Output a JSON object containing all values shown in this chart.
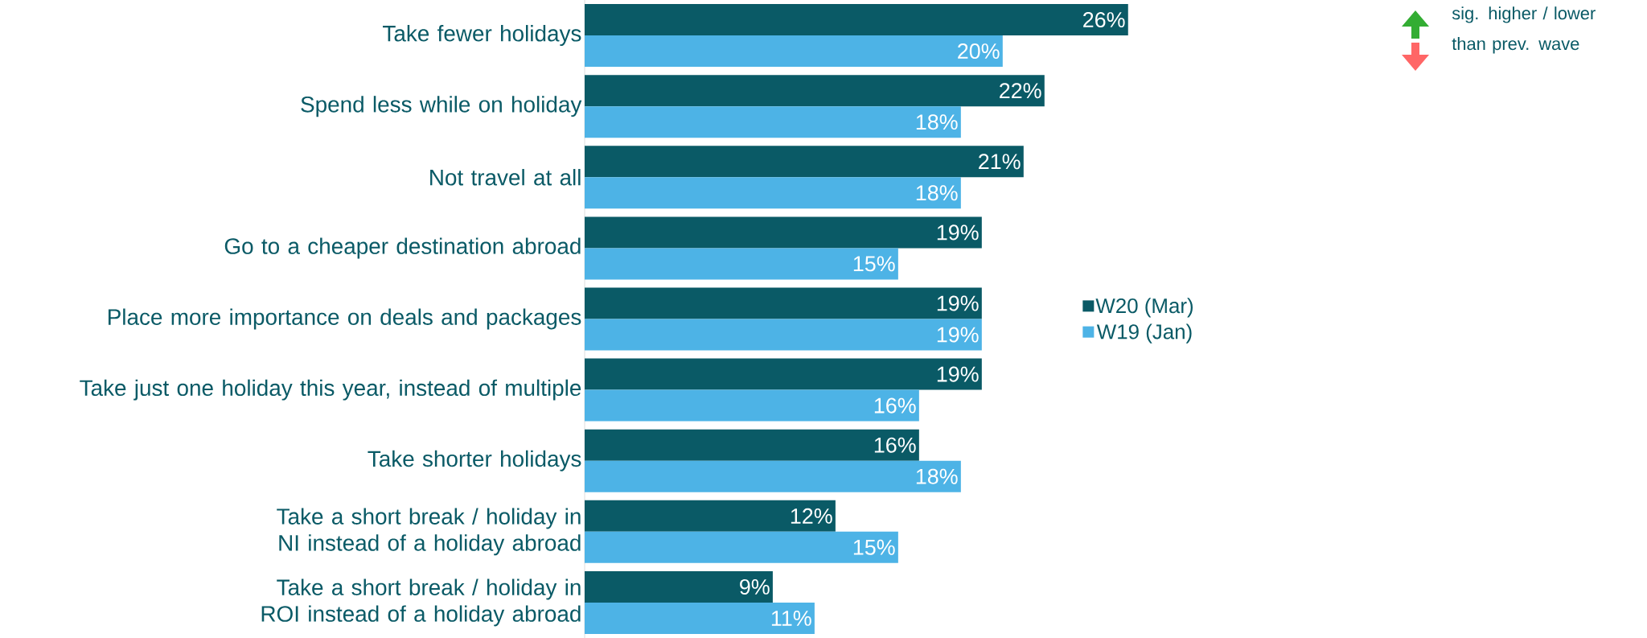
{
  "chart_data": {
    "type": "bar",
    "orientation": "horizontal",
    "categories": [
      "Take fewer holidays",
      "Spend less while on holiday",
      "Not travel at all",
      "Go to a cheaper destination abroad",
      "Place more importance on deals and packages",
      "Take just one holiday this year, instead of multiple",
      "Take shorter holidays",
      "Take a short break / holiday in NI instead of a holiday abroad",
      "Take a short break / holiday in ROI instead of a holiday abroad"
    ],
    "series": [
      {
        "name": "W20 (Mar)",
        "color": "#0a5a66",
        "values": [
          26,
          22,
          21,
          19,
          19,
          19,
          16,
          12,
          9
        ],
        "value_labels": [
          "26%",
          "22%",
          "21%",
          "19%",
          "19%",
          "19%",
          "16%",
          "12%",
          "9%"
        ]
      },
      {
        "name": "W19 (Jan)",
        "color": "#4db3e6",
        "values": [
          20,
          18,
          18,
          15,
          19,
          16,
          18,
          15,
          11
        ],
        "value_labels": [
          "20%",
          "18%",
          "18%",
          "15%",
          "19%",
          "16%",
          "18%",
          "15%",
          "11%"
        ]
      }
    ],
    "tick_labels": "y",
    "legend": "right",
    "annotations": [
      "sig. higher / lower than prev. wave"
    ]
  }
}
